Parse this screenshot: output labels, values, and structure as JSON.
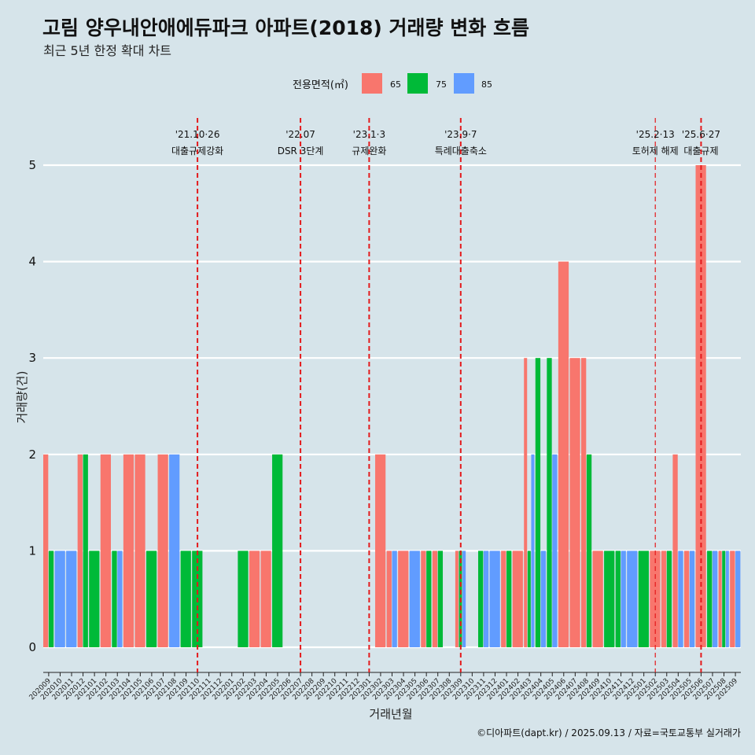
{
  "title": "고림 양우내안애에듀파크 아파트(2018) 거래량 변화 흐름",
  "subtitle": "최근 5년 한정 확대 차트",
  "caption": "©디아파트(dapt.kr) / 2025.09.13 / 자료=국토교통부 실거래가",
  "colors": {
    "background": "#d6e4ea",
    "s65": "#f8766d",
    "s75": "#00ba38",
    "s85": "#619cff",
    "event_line": "#e41a1c",
    "grid": "#ffffff"
  },
  "chart_data": {
    "type": "bar",
    "xlabel": "거래년월",
    "ylabel": "거래량(건)",
    "ylim": [
      0,
      5
    ],
    "yticks": [
      0,
      1,
      2,
      3,
      4,
      5
    ],
    "grid": true,
    "legend": {
      "title": "전용면적(㎡)",
      "position": "top"
    },
    "categories": [
      "202009",
      "202010",
      "202011",
      "202012",
      "202101",
      "202102",
      "202103",
      "202104",
      "202105",
      "202106",
      "202107",
      "202108",
      "202109",
      "202110",
      "202111",
      "202112",
      "202201",
      "202202",
      "202203",
      "202204",
      "202205",
      "202206",
      "202207",
      "202208",
      "202209",
      "202210",
      "202211",
      "202212",
      "202301",
      "202302",
      "202303",
      "202304",
      "202305",
      "202306",
      "202307",
      "202308",
      "202309",
      "202310",
      "202311",
      "202312",
      "202401",
      "202402",
      "202403",
      "202404",
      "202405",
      "202406",
      "202407",
      "202408",
      "202409",
      "202410",
      "202411",
      "202412",
      "202501",
      "202502",
      "202503",
      "202504",
      "202505",
      "202506",
      "202507",
      "202508",
      "202509"
    ],
    "series": [
      {
        "name": "65",
        "values": [
          2,
          0,
          0,
          2,
          0,
          2,
          0,
          2,
          2,
          0,
          2,
          0,
          0,
          0,
          0,
          0,
          0,
          0,
          1,
          1,
          0,
          0,
          0,
          0,
          0,
          0,
          0,
          0,
          0,
          2,
          1,
          1,
          0,
          1,
          1,
          0,
          1,
          0,
          0,
          0,
          1,
          1,
          3,
          0,
          0,
          4,
          3,
          3,
          1,
          0,
          0,
          0,
          0,
          1,
          1,
          2,
          1,
          5,
          0,
          1,
          1
        ]
      },
      {
        "name": "75",
        "values": [
          1,
          0,
          0,
          2,
          1,
          0,
          1,
          0,
          0,
          1,
          0,
          0,
          1,
          1,
          0,
          0,
          0,
          1,
          0,
          0,
          2,
          0,
          0,
          0,
          0,
          0,
          0,
          0,
          0,
          0,
          0,
          0,
          0,
          1,
          1,
          0,
          1,
          0,
          1,
          0,
          1,
          0,
          1,
          3,
          3,
          0,
          0,
          2,
          0,
          1,
          1,
          0,
          1,
          0,
          1,
          0,
          0,
          0,
          1,
          1,
          0
        ]
      },
      {
        "name": "85",
        "values": [
          0,
          1,
          1,
          0,
          0,
          0,
          1,
          0,
          0,
          0,
          0,
          2,
          0,
          0,
          0,
          0,
          0,
          0,
          0,
          0,
          0,
          0,
          0,
          0,
          0,
          0,
          0,
          0,
          0,
          0,
          1,
          0,
          1,
          0,
          0,
          0,
          1,
          0,
          1,
          1,
          0,
          0,
          2,
          1,
          2,
          0,
          0,
          0,
          0,
          0,
          1,
          1,
          0,
          0,
          0,
          1,
          1,
          0,
          1,
          1,
          1
        ]
      }
    ],
    "events": [
      {
        "date": "'21.10·26",
        "label": "대출규제강화",
        "category": "202110"
      },
      {
        "date": "'22.07",
        "label": "DSR 3단계",
        "category": "202207"
      },
      {
        "date": "'23.1·3",
        "label": "규제완화",
        "category": "202301"
      },
      {
        "date": "'23.9·7",
        "label": "특례대출축소",
        "category": "202309"
      },
      {
        "date": "'25.2·13",
        "label": "토허제 해제",
        "category": "202502"
      },
      {
        "date": "'25.6·27",
        "label": "대출규제",
        "category": "202506"
      }
    ]
  }
}
